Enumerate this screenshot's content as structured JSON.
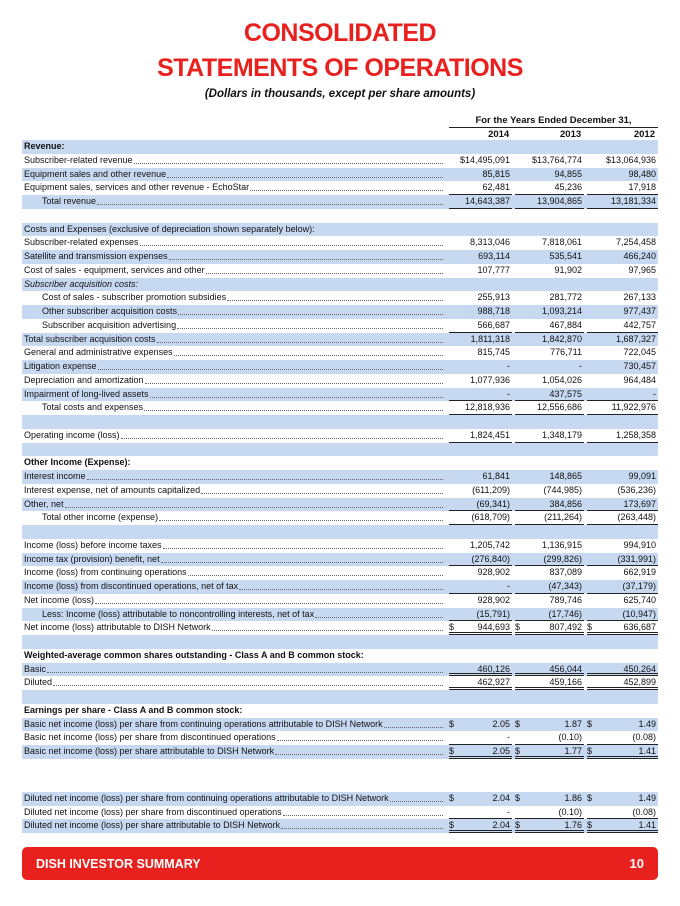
{
  "title_line1": "CONSOLIDATED",
  "title_line2": "STATEMENTS OF OPERATIONS",
  "subtitle": "(Dollars in thousands, except per share amounts)",
  "period_header": "For the Years Ended December 31,",
  "years": [
    "2014",
    "2013",
    "2012"
  ],
  "colors": {
    "accent": "#e8211f",
    "row_shade": "#c6d9f1"
  },
  "rows": [
    {
      "label": "Revenue:",
      "style": "bold",
      "values": [
        "",
        "",
        ""
      ]
    },
    {
      "label": "Subscriber-related revenue",
      "values": [
        "$14,495,091",
        "$13,764,774",
        "$13,064,936"
      ]
    },
    {
      "label": "Equipment sales and other revenue",
      "values": [
        "85,815",
        "94,855",
        "98,480"
      ]
    },
    {
      "label": "Equipment sales, services and other revenue - EchoStar",
      "values": [
        "62,481",
        "45,236",
        "17,918"
      ],
      "line": "u"
    },
    {
      "label": "Total revenue",
      "style": "ind",
      "values": [
        "14,643,387",
        "13,904,865",
        "13,181,334"
      ],
      "line": "u"
    },
    {
      "label": "",
      "values": [
        "",
        "",
        ""
      ]
    },
    {
      "label": "Costs and Expenses (exclusive of depreciation shown separately below):",
      "values": [
        "",
        "",
        ""
      ]
    },
    {
      "label": "Subscriber-related expenses",
      "values": [
        "8,313,046",
        "7,818,061",
        "7,254,458"
      ]
    },
    {
      "label": "Satellite and transmission expenses",
      "values": [
        "693,114",
        "535,541",
        "466,240"
      ]
    },
    {
      "label": "Cost of sales - equipment, services and other",
      "values": [
        "107,777",
        "91,902",
        "97,965"
      ]
    },
    {
      "label": "Subscriber acquisition costs:",
      "style": "ital",
      "values": [
        "",
        "",
        ""
      ]
    },
    {
      "label": "Cost of sales - subscriber promotion subsidies",
      "style": "ind",
      "values": [
        "255,913",
        "281,772",
        "267,133"
      ]
    },
    {
      "label": "Other subscriber acquisition costs",
      "style": "ind",
      "values": [
        "988,718",
        "1,093,214",
        "977,437"
      ]
    },
    {
      "label": "Subscriber acquisition advertising",
      "style": "ind",
      "values": [
        "566,687",
        "467,884",
        "442,757"
      ],
      "line": "u"
    },
    {
      "label": "Total subscriber acquisition costs",
      "values": [
        "1,811,318",
        "1,842,870",
        "1,687,327"
      ]
    },
    {
      "label": "General and administrative expenses",
      "values": [
        "815,745",
        "776,711",
        "722,045"
      ]
    },
    {
      "label": "Litigation expense",
      "values": [
        "-",
        "-",
        "730,457"
      ]
    },
    {
      "label": "Depreciation and amortization",
      "values": [
        "1,077,936",
        "1,054,026",
        "964,484"
      ]
    },
    {
      "label": "Impairment of long-lived assets",
      "values": [
        "-",
        "437,575",
        "-"
      ],
      "line": "u"
    },
    {
      "label": "Total costs and expenses",
      "style": "ind",
      "values": [
        "12,818,936",
        "12,556,686",
        "11,922,976"
      ],
      "line": "u"
    },
    {
      "label": "",
      "values": [
        "",
        "",
        ""
      ]
    },
    {
      "label": "Operating income (loss)",
      "values": [
        "1,824,451",
        "1,348,179",
        "1,258,358"
      ],
      "line": "u"
    },
    {
      "label": "",
      "values": [
        "",
        "",
        ""
      ]
    },
    {
      "label": "Other Income (Expense):",
      "style": "bold",
      "values": [
        "",
        "",
        ""
      ]
    },
    {
      "label": "Interest income",
      "values": [
        "61,841",
        "148,865",
        "99,091"
      ]
    },
    {
      "label": "Interest expense, net of amounts capitalized",
      "values": [
        "(611,209)",
        "(744,985)",
        "(536,236)"
      ]
    },
    {
      "label": "Other, net",
      "values": [
        "(69,341)",
        "384,856",
        "173,697"
      ],
      "line": "u"
    },
    {
      "label": "Total other income (expense)",
      "style": "ind",
      "values": [
        "(618,709)",
        "(211,264)",
        "(263,448)"
      ],
      "line": "u"
    },
    {
      "label": "",
      "values": [
        "",
        "",
        ""
      ]
    },
    {
      "label": "Income (loss) before income taxes",
      "values": [
        "1,205,742",
        "1,136,915",
        "994,910"
      ]
    },
    {
      "label": "Income tax (provision) benefit, net",
      "values": [
        "(276,840)",
        "(299,826)",
        "(331,991)"
      ],
      "line": "u"
    },
    {
      "label": "Income (loss) from continuing operations",
      "values": [
        "928,902",
        "837,089",
        "662,919"
      ]
    },
    {
      "label": "Income (loss) from discontinued operations, net of tax",
      "values": [
        "-",
        "(47,343)",
        "(37,179)"
      ],
      "line": "u"
    },
    {
      "label": "Net income (loss)",
      "values": [
        "928,902",
        "789,746",
        "625,740"
      ]
    },
    {
      "label": "Less:  Income (loss) attributable to noncontrolling interests, net of tax",
      "style": "ind",
      "values": [
        "(15,791)",
        "(17,746)",
        "(10,947)"
      ],
      "line": "u"
    },
    {
      "label": "Net income (loss) attributable to DISH Network",
      "values": [
        "944,693",
        "807,492",
        "636,687"
      ],
      "dollar": true,
      "line": "uu"
    },
    {
      "label": "",
      "values": [
        "",
        "",
        ""
      ]
    },
    {
      "label": "Weighted-average common shares outstanding - Class A and B common stock:",
      "style": "bold",
      "values": [
        "",
        "",
        ""
      ]
    },
    {
      "label": "Basic",
      "values": [
        "460,126",
        "456,044",
        "450,264"
      ],
      "line": "uu"
    },
    {
      "label": "Diluted",
      "values": [
        "462,927",
        "459,166",
        "452,899"
      ],
      "line": "uu"
    },
    {
      "label": "",
      "values": [
        "",
        "",
        ""
      ]
    },
    {
      "label": "Earnings per share - Class A and B common stock:",
      "style": "bold",
      "values": [
        "",
        "",
        ""
      ]
    },
    {
      "label": "Basic net income (loss) per share from continuing operations attributable to DISH Network",
      "values": [
        "2.05",
        "1.87",
        "1.49"
      ],
      "dollar": true
    },
    {
      "label": "Basic net income (loss) per share from discontinued operations",
      "values": [
        "-",
        "(0.10)",
        "(0.08)"
      ],
      "line": "u"
    },
    {
      "label": "Basic net income (loss) per share attributable to DISH Network",
      "values": [
        "2.05",
        "1.77",
        "1.41"
      ],
      "dollar": true,
      "line": "uu"
    },
    {
      "label": "",
      "values": [
        "",
        "",
        ""
      ],
      "tall": true
    },
    {
      "label": "Diluted net income (loss) per share from continuing operations attributable to DISH Network",
      "values": [
        "2.04",
        "1.86",
        "1.49"
      ],
      "dollar": true
    },
    {
      "label": "Diluted net income (loss) per share from discontinued operations",
      "values": [
        "-",
        "(0.10)",
        "(0.08)"
      ],
      "line": "u"
    },
    {
      "label": "Diluted net income (loss) per share attributable to DISH Network",
      "values": [
        "2.04",
        "1.76",
        "1.41"
      ],
      "dollar": true,
      "line": "uu"
    }
  ],
  "dollar_sign": "$",
  "footer": {
    "label": "DISH INVESTOR SUMMARY",
    "page": "10"
  }
}
